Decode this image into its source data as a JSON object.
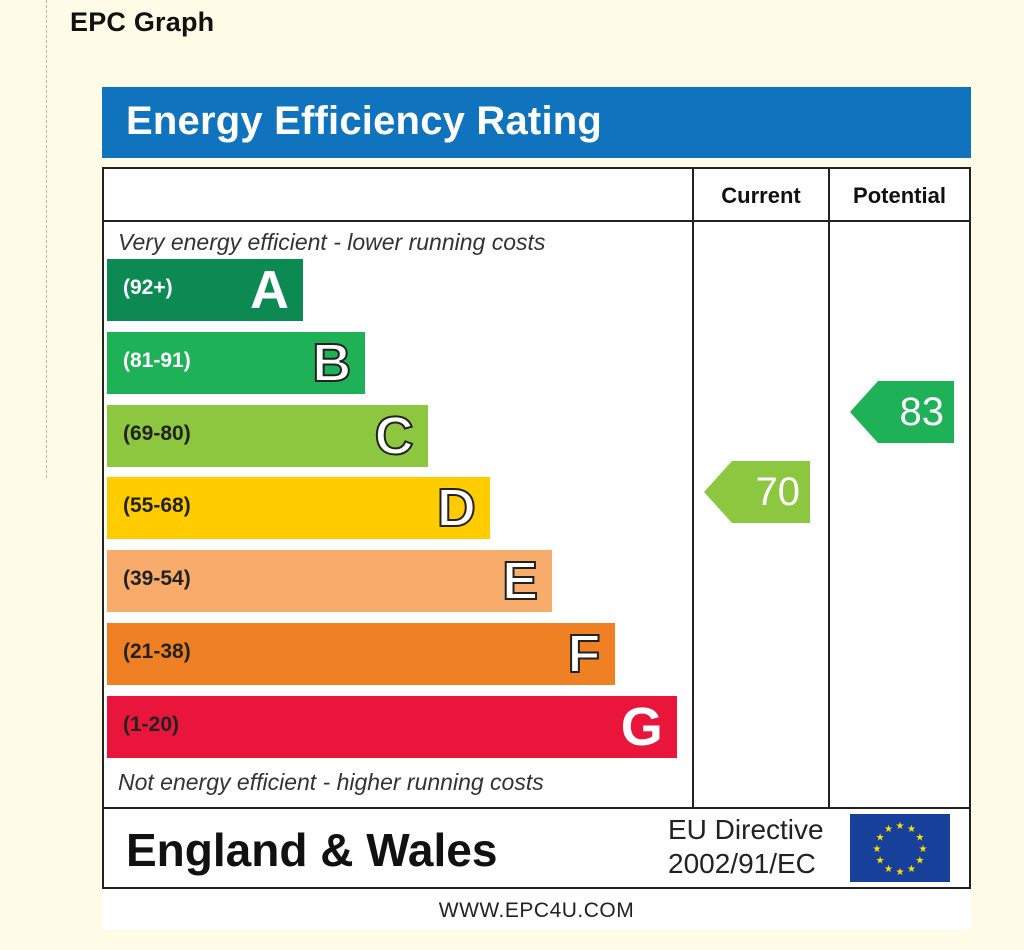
{
  "page": {
    "heading": "EPC Graph"
  },
  "chart_data": {
    "type": "bar",
    "title": "Energy Efficiency Rating",
    "columns": [
      "Current",
      "Potential"
    ],
    "top_caption": "Very energy efficient - lower running costs",
    "bottom_caption": "Not energy efficient - higher running costs",
    "bands": [
      {
        "letter": "A",
        "range": "(92+)",
        "min": 92,
        "max": 100,
        "color": "#0d8a53",
        "text_color": "#ffffff",
        "outline": false
      },
      {
        "letter": "B",
        "range": "(81-91)",
        "min": 81,
        "max": 91,
        "color": "#1fb157",
        "text_color": "#ffffff",
        "outline": true
      },
      {
        "letter": "C",
        "range": "(69-80)",
        "min": 69,
        "max": 80,
        "color": "#8dc63f",
        "text_color": "#222222",
        "outline": true
      },
      {
        "letter": "D",
        "range": "(55-68)",
        "min": 55,
        "max": 68,
        "color": "#ffcc00",
        "text_color": "#222222",
        "outline": true
      },
      {
        "letter": "E",
        "range": "(39-54)",
        "min": 39,
        "max": 54,
        "color": "#f7ac6b",
        "text_color": "#222222",
        "outline": true
      },
      {
        "letter": "F",
        "range": "(21-38)",
        "min": 21,
        "max": 38,
        "color": "#f08024",
        "text_color": "#222222",
        "outline": true
      },
      {
        "letter": "G",
        "range": "(1-20)",
        "min": 1,
        "max": 20,
        "color": "#e9153b",
        "text_color": "#222222",
        "outline": false
      }
    ],
    "ratings": {
      "current": {
        "value": 70,
        "band": "C",
        "color": "#8dc63f"
      },
      "potential": {
        "value": 83,
        "band": "B",
        "color": "#1fb157"
      }
    },
    "footer": {
      "region": "England & Wales",
      "directive_line1": "EU Directive",
      "directive_line2": "2002/91/EC",
      "flag_icon": "eu-flag-icon"
    },
    "website": "WWW.EPC4U.COM"
  }
}
